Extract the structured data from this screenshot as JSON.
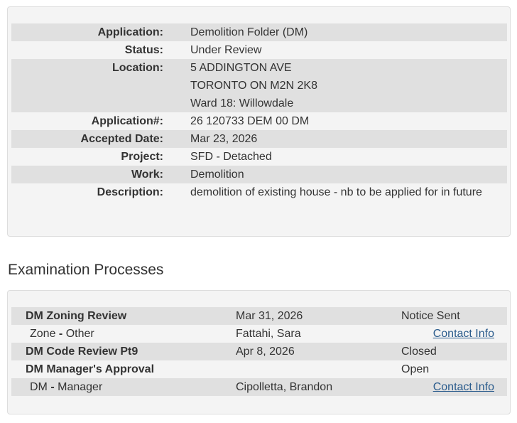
{
  "details": [
    {
      "label": "Application:",
      "lines": [
        "Demolition Folder (DM)"
      ]
    },
    {
      "label": "Status:",
      "lines": [
        "Under Review"
      ]
    },
    {
      "label": "Location:",
      "lines": [
        "5 ADDINGTON AVE",
        "TORONTO ON M2N 2K8",
        "Ward 18: Willowdale"
      ]
    },
    {
      "label": "Application#:",
      "lines": [
        "26 120733 DEM 00 DM"
      ]
    },
    {
      "label": "Accepted Date:",
      "lines": [
        "Mar 23, 2026"
      ]
    },
    {
      "label": "Project:",
      "lines": [
        "SFD - Detached"
      ]
    },
    {
      "label": "Work:",
      "lines": [
        "Demolition"
      ]
    },
    {
      "label": "Description:",
      "lines": [
        "demolition of existing house - nb to be applied for in future"
      ]
    }
  ],
  "exam": {
    "title": "Examination Processes",
    "rows": [
      {
        "type": "process",
        "name": "DM Zoning Review",
        "date": "Mar 31, 2026",
        "status": "Notice Sent"
      },
      {
        "type": "reviewer",
        "role": "Zone",
        "sep": "-",
        "role2": "Other",
        "person": "Fattahi, Sara",
        "link": "Contact Info"
      },
      {
        "type": "process",
        "name": "DM Code Review Pt9",
        "date": "Apr 8, 2026",
        "status": "Closed"
      },
      {
        "type": "process",
        "name": "DM Manager's Approval",
        "date": "",
        "status": "Open"
      },
      {
        "type": "reviewer",
        "role": "DM",
        "sep": "-",
        "role2": "Manager",
        "person": "Cipolletta, Brandon",
        "link": "Contact Info"
      }
    ]
  },
  "colors": {
    "row_alt": "#e0e0e0",
    "panel": "#f4f4f4",
    "link": "#2a5b8c"
  }
}
